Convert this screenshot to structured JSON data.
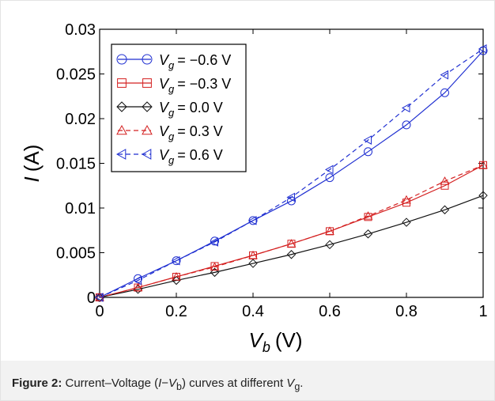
{
  "chart_data": {
    "type": "line",
    "xlabel": {
      "main": "V",
      "sub": "b",
      "unit": "(V)"
    },
    "ylabel": {
      "main": "I",
      "unit": "(A)"
    },
    "xlim": [
      0,
      1
    ],
    "ylim": [
      0,
      0.03
    ],
    "x_ticks": [
      "0",
      "0.2",
      "0.4",
      "0.6",
      "0.8",
      "1"
    ],
    "y_ticks": [
      "0",
      "0.005",
      "0.01",
      "0.015",
      "0.02",
      "0.025",
      "0.03"
    ],
    "legend_position": "top-left",
    "x": [
      0,
      0.1,
      0.2,
      0.3,
      0.4,
      0.5,
      0.6,
      0.7,
      0.8,
      0.9,
      1.0
    ],
    "series": [
      {
        "name_main": "V",
        "name_sub": "g",
        "name_eq": "= −0.6 V",
        "color": "#1f2fd1",
        "dash": "solid",
        "marker": "circle",
        "values": [
          0,
          0.0021,
          0.0041,
          0.0063,
          0.0086,
          0.0108,
          0.0134,
          0.0163,
          0.0193,
          0.0229,
          0.0276
        ]
      },
      {
        "name_main": "V",
        "name_sub": "g",
        "name_eq": "= −0.3 V",
        "color": "#d42020",
        "dash": "solid",
        "marker": "square",
        "values": [
          0,
          0.0011,
          0.0023,
          0.0035,
          0.0047,
          0.006,
          0.0074,
          0.009,
          0.0106,
          0.0125,
          0.0148
        ]
      },
      {
        "name_main": "V",
        "name_sub": "g",
        "name_eq": "=   0.0 V",
        "color": "#111111",
        "dash": "solid",
        "marker": "diamond",
        "values": [
          0,
          0.0009,
          0.0019,
          0.0028,
          0.0038,
          0.0048,
          0.0059,
          0.0071,
          0.0084,
          0.0098,
          0.0114
        ]
      },
      {
        "name_main": "V",
        "name_sub": "g",
        "name_eq": "=   0.3 V",
        "color": "#d42020",
        "dash": "dashed",
        "marker": "triangle-up",
        "values": [
          0,
          0.0011,
          0.0023,
          0.0034,
          0.0047,
          0.006,
          0.0074,
          0.0091,
          0.0109,
          0.013,
          0.0148
        ]
      },
      {
        "name_main": "V",
        "name_sub": "g",
        "name_eq": "=   0.6 V",
        "color": "#1f2fd1",
        "dash": "dashed",
        "marker": "triangle-left",
        "values": [
          0,
          0.0019,
          0.0041,
          0.0062,
          0.0086,
          0.0112,
          0.0143,
          0.0176,
          0.0212,
          0.0249,
          0.0278
        ]
      }
    ]
  },
  "caption": {
    "label": "Figure 2:",
    "text_1": " Current–Voltage (",
    "i": "I",
    "dash": "−",
    "v": "V",
    "v_sub": "b",
    "text_2": ") curves at different ",
    "g": "V",
    "g_sub": "g",
    "end": "."
  }
}
